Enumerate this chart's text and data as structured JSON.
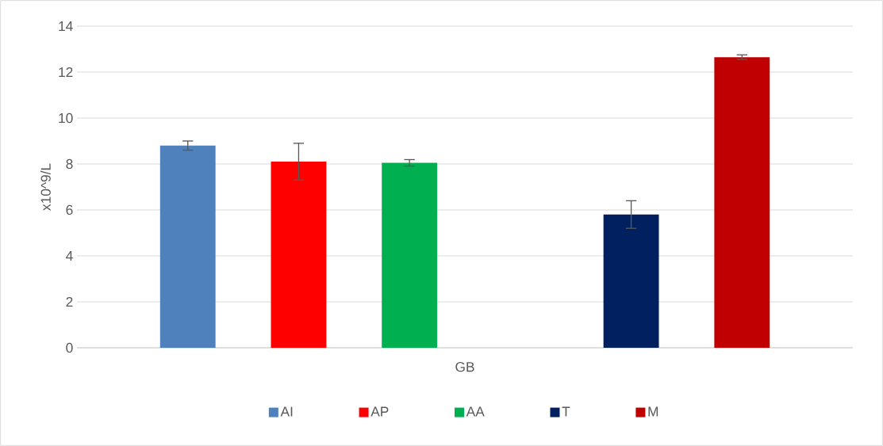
{
  "chart_data": {
    "type": "bar",
    "ylabel": "x10^9/L",
    "categories": [
      "GB"
    ],
    "series": [
      {
        "name": "AI",
        "color": "#4f81bd",
        "values": [
          8.8
        ],
        "errors": [
          0.2
        ]
      },
      {
        "name": "AP",
        "color": "#ff0000",
        "values": [
          8.1
        ],
        "errors": [
          0.8
        ]
      },
      {
        "name": "AA",
        "color": "#00b050",
        "values": [
          8.05
        ],
        "errors": [
          0.14
        ]
      },
      {
        "values": [
          null
        ]
      },
      {
        "name": "T",
        "color": "#002060",
        "values": [
          5.8
        ],
        "errors": [
          0.6
        ]
      },
      {
        "name": "M",
        "color": "#c00000",
        "values": [
          12.65
        ],
        "errors": [
          0.1
        ]
      }
    ],
    "ylim": [
      0,
      14
    ],
    "yticks": [
      0,
      2,
      4,
      6,
      8,
      10,
      12,
      14
    ],
    "grid": "y",
    "legend": "bottom"
  }
}
